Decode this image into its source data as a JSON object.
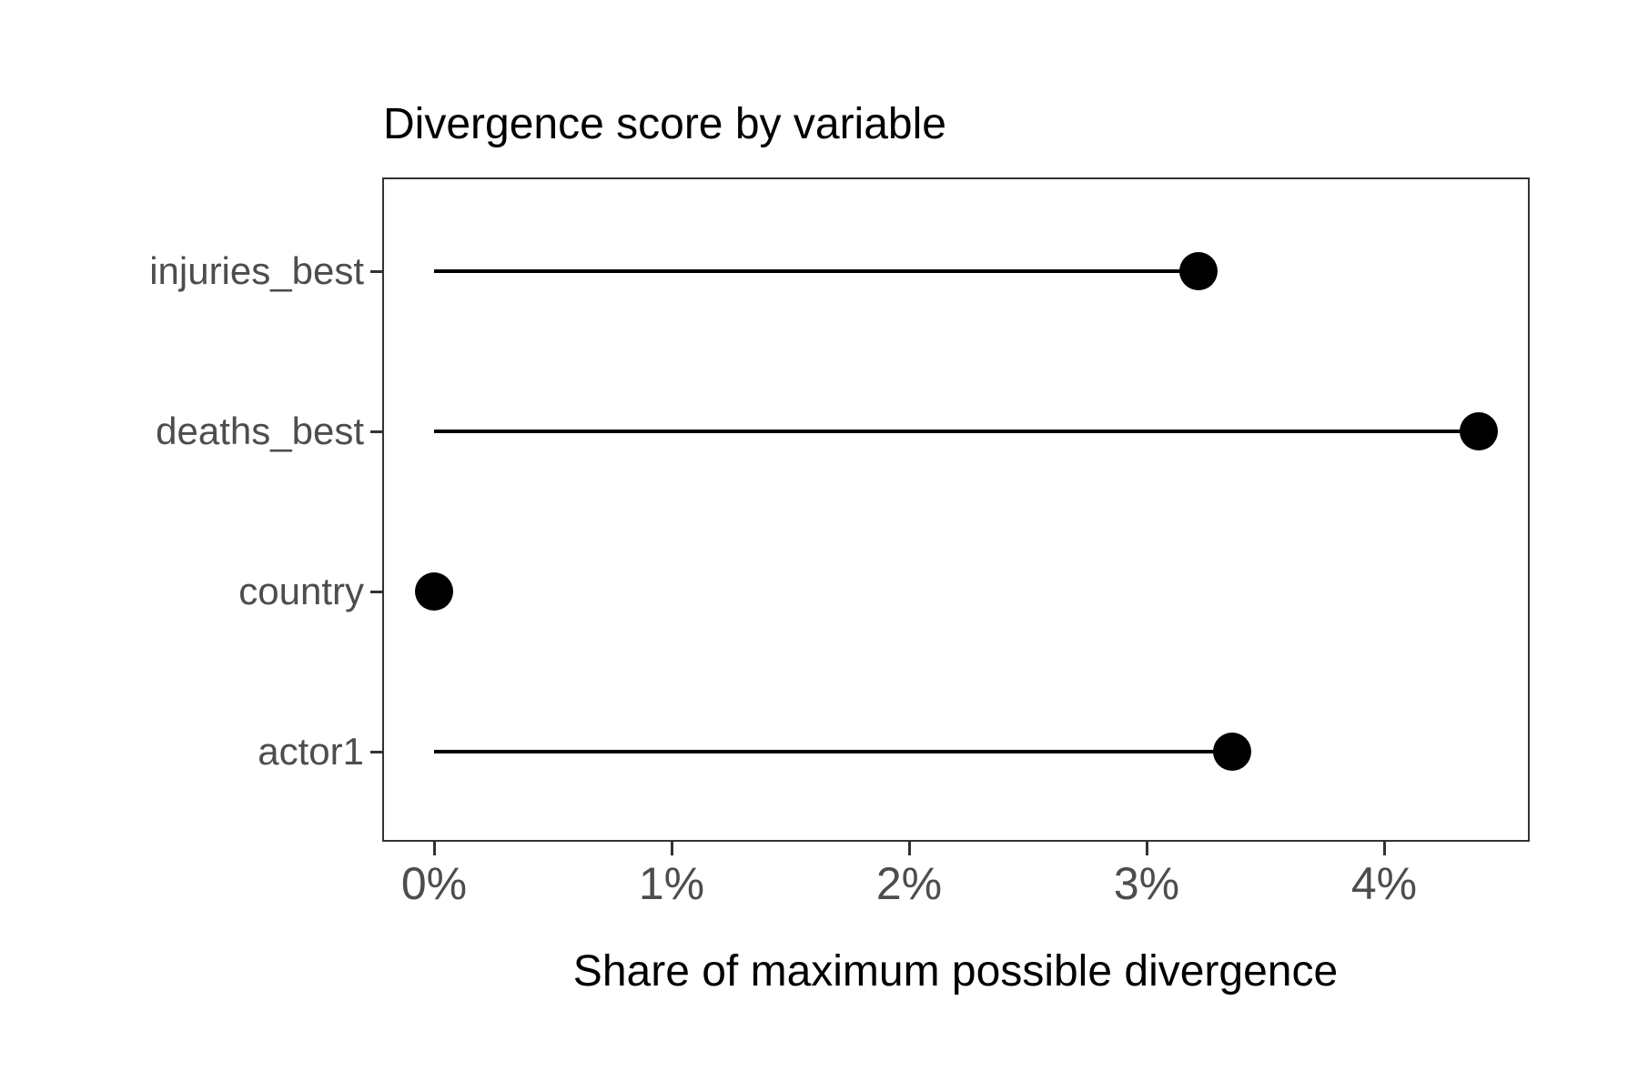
{
  "chart_data": {
    "type": "bar",
    "variant": "lollipop",
    "orientation": "horizontal",
    "title": "Divergence score by variable",
    "xlabel": "Share of maximum possible divergence",
    "ylabel": "",
    "categories": [
      "injuries_best",
      "deaths_best",
      "country",
      "actor1"
    ],
    "values": [
      3.22,
      4.4,
      0,
      3.36
    ],
    "value_unit": "percent of maximum possible divergence",
    "x_ticks": [
      {
        "value": 0,
        "label": "0%"
      },
      {
        "value": 1,
        "label": "1%"
      },
      {
        "value": 2,
        "label": "2%"
      },
      {
        "value": 3,
        "label": "3%"
      },
      {
        "value": 4,
        "label": "4%"
      }
    ],
    "xlim": [
      -0.215,
      4.615
    ],
    "grid": false,
    "legend": "none",
    "colors": {
      "point": "#000000",
      "stem": "#000000",
      "axis_text": "#4d4d4d",
      "title_text": "#000000",
      "panel_border": "#333333",
      "background": "#ffffff"
    }
  }
}
